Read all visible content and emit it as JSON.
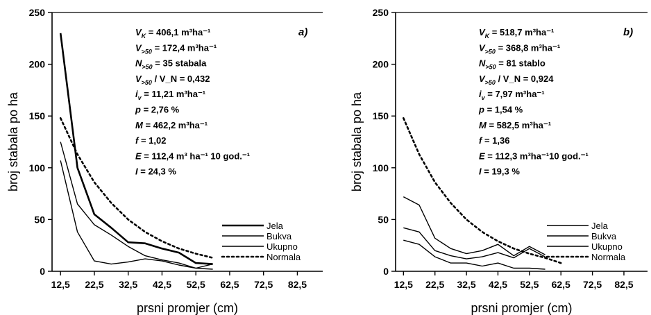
{
  "chart_data": [
    {
      "type": "line",
      "panel_label": "a)",
      "xlabel": "prsni promjer (cm)",
      "ylabel": "broj stabala po ha",
      "xlim": [
        10,
        90
      ],
      "ylim": [
        0,
        250
      ],
      "xticks": [
        "12,5",
        "22,5",
        "32,5",
        "42,5",
        "52,5",
        "62,5",
        "72,5",
        "82,5"
      ],
      "yticks": [
        "0",
        "50",
        "100",
        "150",
        "200",
        "250"
      ],
      "annotations": [
        "V_K = 406,1 m³ha⁻¹",
        "V_>50 = 172,4 m³ha⁻¹",
        "N_>50 = 35 stabala",
        "V_>50 / V_N = 0,432",
        "i_v = 11,21 m³ha⁻¹",
        "p = 2,76 %",
        "M = 462,2 m³ha⁻¹",
        "f = 1,02",
        "E = 112,4 m³ ha⁻¹ 10 god.⁻¹",
        "I = 24,3 %"
      ],
      "legend_position": "bottom-right",
      "series": [
        {
          "name": "Jela",
          "style": "solid-thick",
          "x": [
            12.5,
            17.5,
            22.5,
            27.5,
            32.5,
            37.5,
            42.5,
            47.5,
            52.5,
            57.5
          ],
          "values": [
            230,
            100,
            55,
            42,
            28,
            27,
            22,
            18,
            8,
            7
          ]
        },
        {
          "name": "Bukva",
          "style": "solid",
          "x": [
            12.5,
            17.5,
            22.5,
            27.5,
            32.5,
            37.5,
            42.5,
            47.5,
            52.5,
            57.5
          ],
          "values": [
            107,
            38,
            10,
            7,
            9,
            12,
            10,
            6,
            3,
            2
          ]
        },
        {
          "name": "Ukupno",
          "style": "solid",
          "x": [
            12.5,
            17.5,
            22.5,
            27.5,
            32.5,
            37.5,
            42.5,
            47.5,
            52.5,
            57.5
          ],
          "values": [
            125,
            65,
            45,
            35,
            24,
            15,
            11,
            8,
            3,
            7
          ]
        },
        {
          "name": "Normala",
          "style": "dotted",
          "x": [
            12.5,
            17.5,
            22.5,
            27.5,
            32.5,
            37.5,
            42.5,
            47.5,
            52.5,
            57.5
          ],
          "values": [
            148,
            113,
            86,
            66,
            50,
            38,
            29,
            22,
            17,
            13
          ]
        }
      ]
    },
    {
      "type": "line",
      "panel_label": "b)",
      "xlabel": "prsni promjer (cm)",
      "ylabel": "broj stabala po ha",
      "xlim": [
        10,
        90
      ],
      "ylim": [
        0,
        250
      ],
      "xticks": [
        "12,5",
        "22,5",
        "32,5",
        "42,5",
        "52,5",
        "62,5",
        "72,5",
        "82,5"
      ],
      "yticks": [
        "0",
        "50",
        "100",
        "150",
        "200",
        "250"
      ],
      "annotations": [
        "V_K = 518,7 m³ha⁻¹",
        "V_>50 = 368,8 m³ha⁻¹",
        "N_>50 = 81 stablo",
        "V_>50 / V_N = 0,924",
        "i_v = 7,97 m³ha⁻¹",
        "p = 1,54 %",
        "M = 582,5 m³ha⁻¹",
        "f = 1,36",
        "E = 112,3 m³ha⁻¹10 god.⁻¹",
        "I = 19,3 %"
      ],
      "legend_position": "bottom-right",
      "series": [
        {
          "name": "Jela",
          "style": "solid",
          "x": [
            12.5,
            17.5,
            22.5,
            27.5,
            32.5,
            37.5,
            42.5,
            47.5,
            52.5,
            57.5
          ],
          "values": [
            42,
            38,
            20,
            15,
            12,
            14,
            18,
            13,
            22,
            14
          ]
        },
        {
          "name": "Bukva",
          "style": "solid",
          "x": [
            12.5,
            17.5,
            22.5,
            27.5,
            32.5,
            37.5,
            42.5,
            47.5,
            52.5,
            57.5
          ],
          "values": [
            30,
            26,
            14,
            8,
            8,
            5,
            8,
            3,
            3,
            2
          ]
        },
        {
          "name": "Ukupno",
          "style": "solid",
          "x": [
            12.5,
            17.5,
            22.5,
            27.5,
            32.5,
            37.5,
            42.5,
            47.5,
            52.5,
            57.5
          ],
          "values": [
            72,
            64,
            32,
            22,
            17,
            20,
            26,
            15,
            24,
            16
          ]
        },
        {
          "name": "Normala",
          "style": "dotted",
          "x": [
            12.5,
            17.5,
            22.5,
            27.5,
            32.5,
            37.5,
            42.5,
            47.5,
            52.5,
            57.5,
            62.5
          ],
          "values": [
            148,
            113,
            86,
            66,
            50,
            38,
            29,
            22,
            17,
            13,
            8
          ]
        }
      ]
    }
  ]
}
